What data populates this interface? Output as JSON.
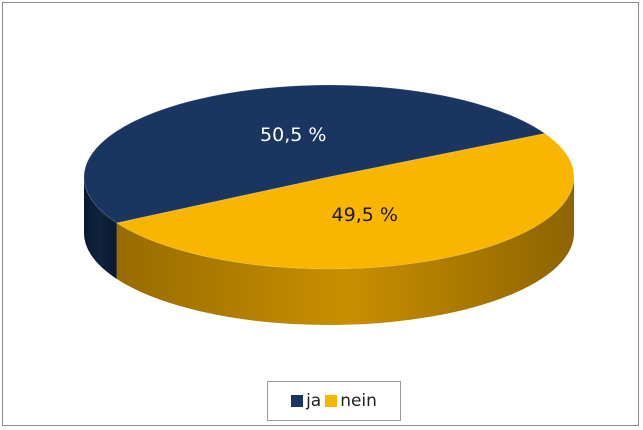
{
  "chart_data": {
    "type": "pie",
    "three_d": true,
    "title": "",
    "slices": [
      {
        "name": "ja",
        "value": 50.5,
        "label": "50,5 %",
        "color": "#1a3560",
        "side_color": "#0f223f"
      },
      {
        "name": "nein",
        "value": 49.5,
        "label": "49,5 %",
        "color": "#f9b600",
        "side_color": "#c98f00"
      }
    ],
    "legend": {
      "position": "bottom"
    }
  }
}
